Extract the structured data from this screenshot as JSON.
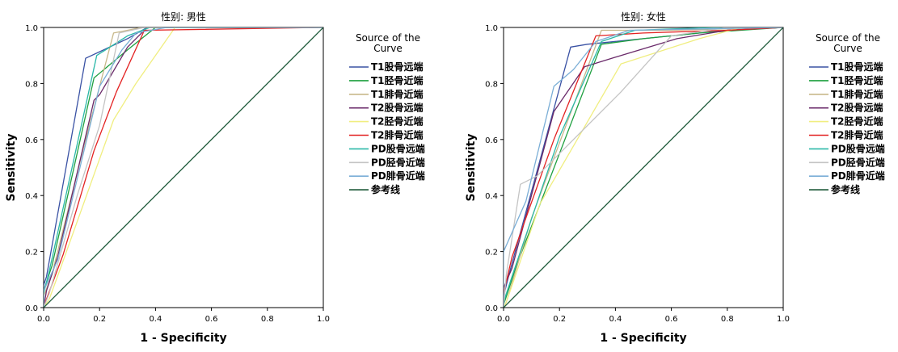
{
  "colors": {
    "T1股骨远端": "#3a52a4",
    "T1胫骨近端": "#1fa040",
    "T1腓骨近端": "#c8b88a",
    "T2股骨远端": "#6a2a6a",
    "T2胫骨近端": "#f0ee80",
    "T2腓骨近端": "#e32222",
    "PD股骨远端": "#2ab8a8",
    "PD胫骨近端": "#c4c4c4",
    "PD腓骨近端": "#7aaed6",
    "参考线": "#1e5a3a"
  },
  "chart_data": [
    {
      "type": "line",
      "title": "性别: 男性",
      "xlabel": "1 - Specificity",
      "ylabel": "Sensitivity",
      "xlim": [
        0,
        1
      ],
      "ylim": [
        0,
        1
      ],
      "xticks": [
        "0.0",
        "0.2",
        "0.4",
        "0.6",
        "0.8",
        "1.0"
      ],
      "yticks": [
        "0.0",
        "0.2",
        "0.4",
        "0.6",
        "0.8",
        "1.0"
      ],
      "grid": false,
      "legend_title": "Source of the Curve",
      "legend_position": "right",
      "series": [
        {
          "name": "T1股骨远端",
          "points": [
            [
              0,
              0
            ],
            [
              0,
              0.08
            ],
            [
              0.01,
              0.11
            ],
            [
              0.15,
              0.89
            ],
            [
              0.3,
              0.96
            ],
            [
              0.37,
              1.0
            ],
            [
              1,
              1
            ]
          ]
        },
        {
          "name": "T1胫骨近端",
          "points": [
            [
              0,
              0
            ],
            [
              0,
              0.06
            ],
            [
              0.03,
              0.15
            ],
            [
              0.18,
              0.82
            ],
            [
              0.24,
              0.87
            ],
            [
              0.3,
              0.92
            ],
            [
              0.4,
              1.0
            ],
            [
              1,
              1
            ]
          ]
        },
        {
          "name": "T1腓骨近端",
          "points": [
            [
              0,
              0
            ],
            [
              0,
              0.04
            ],
            [
              0.03,
              0.12
            ],
            [
              0.14,
              0.56
            ],
            [
              0.25,
              0.98
            ],
            [
              0.3,
              0.99
            ],
            [
              0.35,
              1.0
            ],
            [
              1,
              1
            ]
          ]
        },
        {
          "name": "T2股骨远端",
          "points": [
            [
              0,
              0
            ],
            [
              0.01,
              0.06
            ],
            [
              0.05,
              0.18
            ],
            [
              0.18,
              0.74
            ],
            [
              0.2,
              0.76
            ],
            [
              0.3,
              0.93
            ],
            [
              0.37,
              1.0
            ],
            [
              1,
              1
            ]
          ]
        },
        {
          "name": "T2胫骨近端",
          "points": [
            [
              0,
              0
            ],
            [
              0.02,
              0.03
            ],
            [
              0.06,
              0.14
            ],
            [
              0.25,
              0.67
            ],
            [
              0.33,
              0.8
            ],
            [
              0.47,
              1.0
            ],
            [
              1,
              1
            ]
          ]
        },
        {
          "name": "T2腓骨近端",
          "points": [
            [
              0,
              0
            ],
            [
              0.01,
              0.03
            ],
            [
              0.07,
              0.19
            ],
            [
              0.18,
              0.56
            ],
            [
              0.26,
              0.77
            ],
            [
              0.36,
              0.99
            ],
            [
              1,
              1
            ]
          ]
        },
        {
          "name": "PD股骨远端",
          "points": [
            [
              0,
              0
            ],
            [
              0,
              0.05
            ],
            [
              0.02,
              0.13
            ],
            [
              0.19,
              0.9
            ],
            [
              0.3,
              0.97
            ],
            [
              0.38,
              1.0
            ],
            [
              1,
              1
            ]
          ]
        },
        {
          "name": "PD胫骨近端",
          "points": [
            [
              0,
              0
            ],
            [
              0.02,
              0.05
            ],
            [
              0.12,
              0.4
            ],
            [
              0.2,
              0.65
            ],
            [
              0.27,
              0.98
            ],
            [
              0.36,
              1.0
            ],
            [
              1,
              1
            ]
          ]
        },
        {
          "name": "PD腓骨近端",
          "points": [
            [
              0,
              0
            ],
            [
              0,
              0.06
            ],
            [
              0.05,
              0.17
            ],
            [
              0.2,
              0.79
            ],
            [
              0.28,
              0.92
            ],
            [
              0.33,
              0.98
            ],
            [
              0.44,
              1.0
            ],
            [
              1,
              1
            ]
          ]
        },
        {
          "name": "参考线",
          "points": [
            [
              0,
              0
            ],
            [
              1,
              1
            ]
          ]
        }
      ]
    },
    {
      "type": "line",
      "title": "性别: 女性",
      "xlabel": "1 - Specificity",
      "ylabel": "Sensitivity",
      "xlim": [
        0,
        1
      ],
      "ylim": [
        0,
        1
      ],
      "xticks": [
        "0.0",
        "0.2",
        "0.4",
        "0.6",
        "0.8",
        "1.0"
      ],
      "yticks": [
        "0.0",
        "0.2",
        "0.4",
        "0.6",
        "0.8",
        "1.0"
      ],
      "grid": false,
      "legend_title": "Source of the Curve",
      "legend_position": "right",
      "series": [
        {
          "name": "T1股骨远端",
          "points": [
            [
              0,
              0
            ],
            [
              0,
              0.04
            ],
            [
              0.02,
              0.12
            ],
            [
              0.24,
              0.93
            ],
            [
              0.3,
              0.94
            ],
            [
              0.6,
              0.97
            ],
            [
              0.8,
              0.99
            ],
            [
              1,
              1
            ]
          ]
        },
        {
          "name": "T1胫骨近端",
          "points": [
            [
              0,
              0
            ],
            [
              0,
              0.01
            ],
            [
              0.05,
              0.16
            ],
            [
              0.35,
              0.94
            ],
            [
              0.5,
              0.96
            ],
            [
              0.7,
              0.98
            ],
            [
              1,
              1
            ]
          ]
        },
        {
          "name": "T1腓骨近端",
          "points": [
            [
              0,
              0
            ],
            [
              0.01,
              0.02
            ],
            [
              0.1,
              0.32
            ],
            [
              0.35,
              0.99
            ],
            [
              0.6,
              0.99
            ],
            [
              1,
              1
            ]
          ]
        },
        {
          "name": "T2股骨远端",
          "points": [
            [
              0,
              0
            ],
            [
              0,
              0.07
            ],
            [
              0.03,
              0.14
            ],
            [
              0.18,
              0.7
            ],
            [
              0.29,
              0.86
            ],
            [
              0.42,
              0.9
            ],
            [
              0.62,
              0.96
            ],
            [
              0.8,
              0.99
            ],
            [
              1,
              1
            ]
          ]
        },
        {
          "name": "T2胫骨近端",
          "points": [
            [
              0,
              0
            ],
            [
              0.01,
              0.02
            ],
            [
              0.13,
              0.37
            ],
            [
              0.42,
              0.87
            ],
            [
              0.7,
              0.96
            ],
            [
              0.85,
              1.0
            ],
            [
              1,
              1
            ]
          ]
        },
        {
          "name": "T2腓骨近端",
          "points": [
            [
              0,
              0
            ],
            [
              0,
              0.05
            ],
            [
              0.03,
              0.18
            ],
            [
              0.18,
              0.6
            ],
            [
              0.33,
              0.97
            ],
            [
              0.5,
              0.98
            ],
            [
              0.8,
              0.99
            ],
            [
              1,
              1
            ]
          ]
        },
        {
          "name": "PD股骨远端",
          "points": [
            [
              0,
              0
            ],
            [
              0,
              0.02
            ],
            [
              0.04,
              0.14
            ],
            [
              0.2,
              0.61
            ],
            [
              0.35,
              0.95
            ],
            [
              0.47,
              0.99
            ],
            [
              0.75,
              1.0
            ],
            [
              1,
              1
            ]
          ]
        },
        {
          "name": "PD胫骨近端",
          "points": [
            [
              0,
              0
            ],
            [
              0.01,
              0.12
            ],
            [
              0.06,
              0.44
            ],
            [
              0.12,
              0.47
            ],
            [
              0.42,
              0.77
            ],
            [
              0.6,
              0.97
            ],
            [
              0.8,
              1.0
            ],
            [
              1,
              1
            ]
          ]
        },
        {
          "name": "PD腓骨近端",
          "points": [
            [
              0,
              0
            ],
            [
              0,
              0.2
            ],
            [
              0.08,
              0.38
            ],
            [
              0.18,
              0.79
            ],
            [
              0.25,
              0.85
            ],
            [
              0.33,
              0.95
            ],
            [
              0.45,
              0.99
            ],
            [
              1,
              1
            ]
          ]
        },
        {
          "name": "参考线",
          "points": [
            [
              0,
              0
            ],
            [
              1,
              1
            ]
          ]
        }
      ]
    }
  ]
}
